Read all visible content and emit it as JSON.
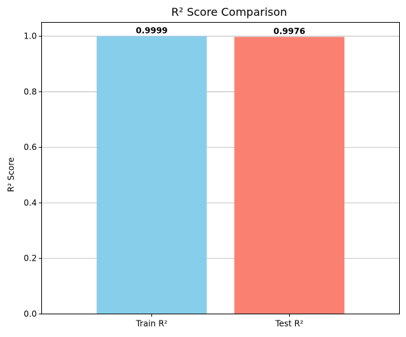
{
  "chart_data": {
    "type": "bar",
    "title": "R² Score Comparison",
    "xlabel": "",
    "ylabel": "R² Score",
    "categories": [
      "Train R²",
      "Test R²"
    ],
    "values": [
      0.9999,
      0.9976
    ],
    "value_labels": [
      "0.9999",
      "0.9976"
    ],
    "colors": [
      "#87ceeb",
      "#fa8072"
    ],
    "ylim": [
      0,
      1.05
    ],
    "yticks": [
      0.0,
      0.2,
      0.4,
      0.6,
      0.8,
      1.0
    ],
    "ytick_labels": [
      "0.0",
      "0.2",
      "0.4",
      "0.6",
      "0.8",
      "1.0"
    ],
    "grid": "y-axis"
  }
}
